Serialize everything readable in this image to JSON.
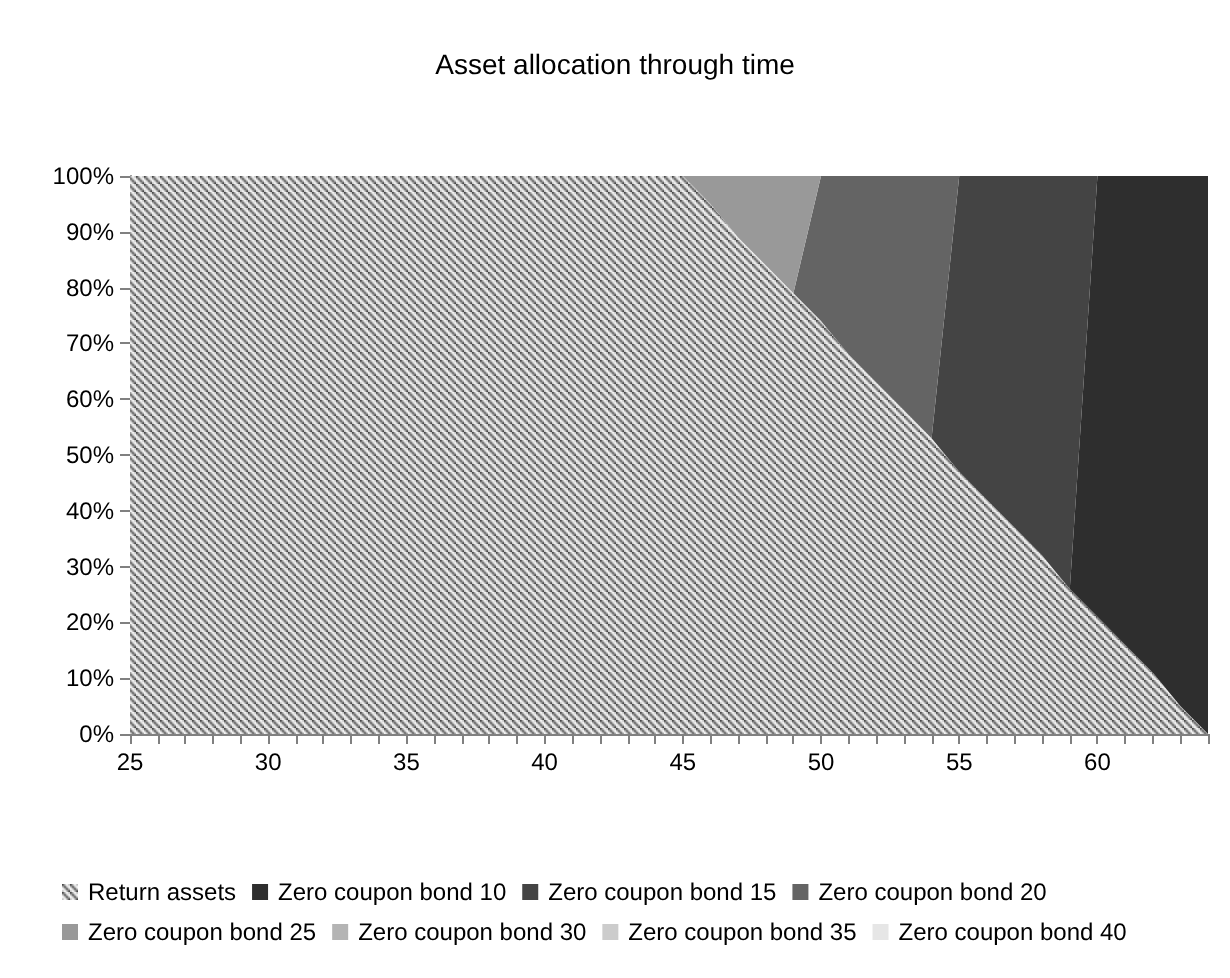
{
  "chart_data": {
    "type": "area",
    "title": "Asset allocation through time",
    "stacked": true,
    "categories": [
      "25",
      null,
      null,
      null,
      null,
      "30",
      null,
      null,
      null,
      null,
      "35",
      null,
      null,
      null,
      null,
      "40",
      null,
      null,
      null,
      null,
      "45",
      null,
      null,
      null,
      null,
      "50",
      null,
      null,
      null,
      null,
      "55",
      null,
      null,
      null,
      null,
      "60",
      null,
      null,
      null,
      null
    ],
    "series": [
      {
        "name": "Return assets",
        "color": "#404040",
        "values": [
          100,
          100,
          100,
          100,
          100,
          100,
          100,
          100,
          100,
          100,
          100,
          100,
          100,
          100,
          100,
          100,
          100,
          100,
          100,
          100,
          100,
          95,
          89,
          84,
          79,
          74,
          68,
          63,
          58,
          53,
          47,
          42,
          37,
          32,
          26,
          21,
          16,
          11,
          5,
          0
        ]
      },
      {
        "name": "Zero coupon bond 10",
        "color": "#2e2e2e",
        "values": [
          null,
          null,
          null,
          null,
          null,
          null,
          null,
          null,
          null,
          null,
          null,
          null,
          null,
          null,
          null,
          null,
          null,
          null,
          null,
          null,
          null,
          null,
          null,
          null,
          null,
          null,
          null,
          null,
          null,
          null,
          null,
          null,
          null,
          null,
          0,
          79,
          84,
          89,
          95,
          100
        ]
      },
      {
        "name": "Zero coupon bond 15",
        "color": "#444444",
        "values": [
          null,
          null,
          null,
          null,
          null,
          null,
          null,
          null,
          null,
          null,
          null,
          null,
          null,
          null,
          null,
          null,
          null,
          null,
          null,
          null,
          null,
          null,
          null,
          null,
          null,
          null,
          null,
          null,
          null,
          0,
          53,
          58,
          63,
          68,
          74,
          0,
          null,
          null,
          null,
          null
        ]
      },
      {
        "name": "Zero coupon bond 20",
        "color": "#646464",
        "values": [
          null,
          null,
          null,
          null,
          null,
          null,
          null,
          null,
          null,
          null,
          null,
          null,
          null,
          null,
          null,
          null,
          null,
          null,
          null,
          null,
          null,
          null,
          null,
          null,
          0,
          26,
          32,
          37,
          42,
          47,
          0,
          null,
          null,
          null,
          null,
          null,
          null,
          null,
          null,
          null
        ]
      },
      {
        "name": "Zero coupon bond 25",
        "color": "#999999",
        "values": [
          null,
          null,
          null,
          null,
          null,
          null,
          null,
          null,
          null,
          null,
          null,
          null,
          null,
          null,
          null,
          null,
          null,
          null,
          null,
          null,
          0,
          5,
          11,
          16,
          21,
          0,
          null,
          null,
          null,
          null,
          null,
          null,
          null,
          null,
          null,
          null,
          null,
          null,
          null,
          null
        ]
      },
      {
        "name": "Zero coupon bond 30",
        "color": "#b4b4b4",
        "values": [
          null,
          null,
          null,
          null,
          null,
          null,
          null,
          null,
          null,
          null,
          null,
          null,
          null,
          null,
          null,
          null,
          null,
          null,
          null,
          null,
          null,
          null,
          null,
          null,
          null,
          null,
          null,
          null,
          null,
          null,
          null,
          null,
          null,
          null,
          null,
          null,
          null,
          null,
          null,
          null
        ]
      },
      {
        "name": "Zero coupon bond 35",
        "color": "#cccccc",
        "values": [
          null,
          null,
          null,
          null,
          null,
          null,
          null,
          null,
          null,
          null,
          null,
          null,
          null,
          null,
          null,
          null,
          null,
          null,
          null,
          null,
          null,
          null,
          null,
          null,
          null,
          null,
          null,
          null,
          null,
          null,
          null,
          null,
          null,
          null,
          null,
          null,
          null,
          null,
          null,
          null
        ]
      },
      {
        "name": "Zero coupon bond 40",
        "color": "#e6e6e6",
        "values": [
          null,
          null,
          null,
          null,
          null,
          null,
          null,
          null,
          null,
          null,
          null,
          null,
          null,
          null,
          null,
          null,
          null,
          null,
          null,
          null,
          null,
          null,
          null,
          null,
          null,
          null,
          null,
          null,
          null,
          null,
          null,
          null,
          null,
          null,
          null,
          null,
          null,
          null,
          null,
          null
        ]
      }
    ],
    "ylim": [
      0,
      100
    ],
    "yticks": [
      {
        "value": 0,
        "label": "0%"
      },
      {
        "value": 10,
        "label": "10%"
      },
      {
        "value": 20,
        "label": "20%"
      },
      {
        "value": 30,
        "label": "30%"
      },
      {
        "value": 40,
        "label": "40%"
      },
      {
        "value": 50,
        "label": "50%"
      },
      {
        "value": 60,
        "label": "60%"
      },
      {
        "value": 70,
        "label": "70%"
      },
      {
        "value": 80,
        "label": "80%"
      },
      {
        "value": 90,
        "label": "90%"
      },
      {
        "value": 100,
        "label": "100%"
      }
    ],
    "legend": "bottom",
    "grid": false
  }
}
